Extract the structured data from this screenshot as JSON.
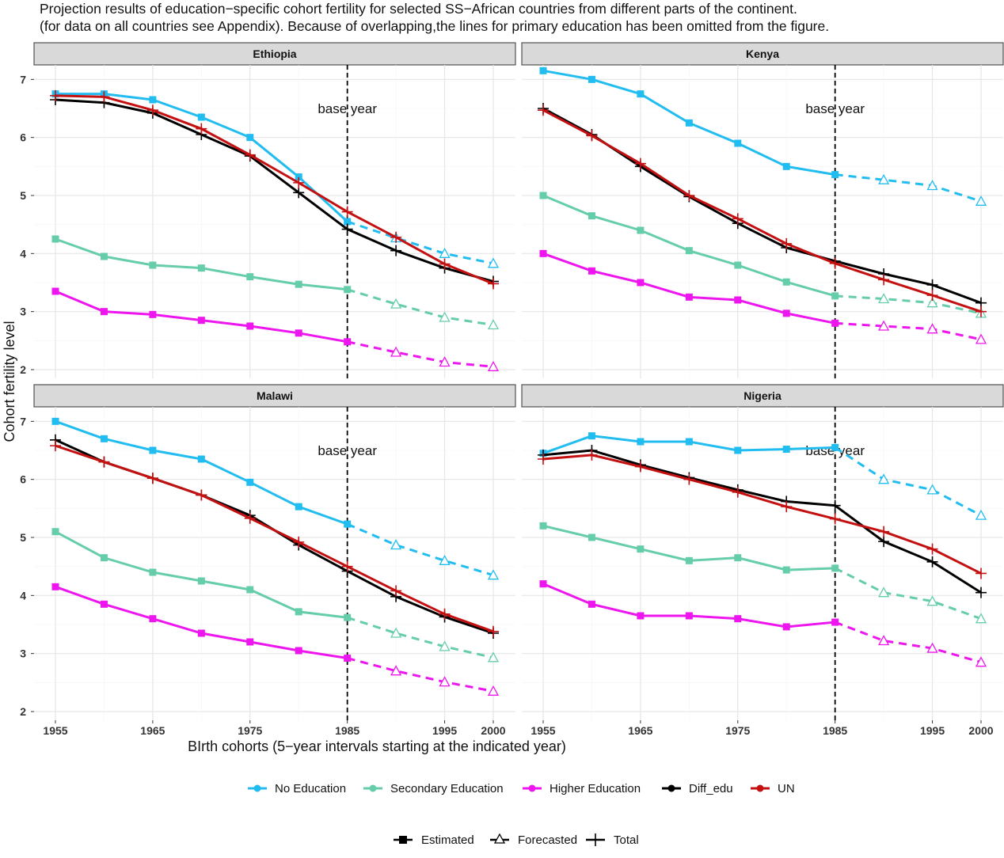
{
  "chart_data": {
    "type": "line",
    "title": "Projection results of education−specific cohort fertility for selected SS−African countries from different parts of the continent.",
    "subtitle": "(for data on all countries see Appendix). Because of overlapping,the lines for primary education has been omitted from the figure.",
    "xlabel": "BIrth cohorts (5−year intervals starting at the indicated year)",
    "ylabel": "Cohort fertility level",
    "x": [
      1955,
      1960,
      1965,
      1970,
      1975,
      1980,
      1985,
      1990,
      1995,
      2000
    ],
    "xticks": [
      "1955",
      "1965",
      "1975",
      "1985",
      "1995",
      "2000"
    ],
    "yticks": [
      "2",
      "3",
      "4",
      "5",
      "6",
      "7"
    ],
    "ylim": [
      1.85,
      7.25
    ],
    "xlim": [
      1953,
      2002
    ],
    "grid": true,
    "base_year": 1985,
    "base_year_label": "base year",
    "legend_placement": "bottom",
    "series_legend": [
      {
        "name": "No Education",
        "color": "#22bdf0"
      },
      {
        "name": "Secondary Education",
        "color": "#66cdaa"
      },
      {
        "name": "Higher Education",
        "color": "#ee16ee"
      },
      {
        "name": "Diff_edu",
        "color": "#000000"
      },
      {
        "name": "UN",
        "color": "#c41010"
      }
    ],
    "type_legend": [
      "Estimated",
      "Forecasted",
      "Total"
    ],
    "panels": [
      {
        "name": "Ethiopia",
        "series": {
          "No Education": [
            6.75,
            6.75,
            6.65,
            6.35,
            6.0,
            5.32,
            4.55,
            4.27,
            4.0,
            3.83
          ],
          "Secondary Education": [
            4.25,
            3.95,
            3.8,
            3.75,
            3.6,
            3.47,
            3.38,
            3.13,
            2.9,
            2.77
          ],
          "Higher Education": [
            3.35,
            3.0,
            2.95,
            2.85,
            2.75,
            2.63,
            2.48,
            2.3,
            2.13,
            2.05
          ],
          "Diff_edu": [
            6.65,
            6.6,
            6.42,
            6.05,
            5.68,
            5.05,
            4.42,
            4.05,
            3.75,
            3.52
          ],
          "UN": [
            6.72,
            6.7,
            6.47,
            6.15,
            5.7,
            5.22,
            4.72,
            4.28,
            3.82,
            3.48
          ]
        }
      },
      {
        "name": "Kenya",
        "series": {
          "No Education": [
            7.15,
            7.0,
            6.75,
            6.25,
            5.9,
            5.5,
            5.36,
            5.27,
            5.17,
            4.9
          ],
          "Secondary Education": [
            5.0,
            4.65,
            4.4,
            4.05,
            3.8,
            3.51,
            3.27,
            3.22,
            3.15,
            2.97
          ],
          "Higher Education": [
            4.0,
            3.7,
            3.5,
            3.25,
            3.2,
            2.97,
            2.8,
            2.75,
            2.7,
            2.52
          ],
          "Diff_edu": [
            6.5,
            6.05,
            5.5,
            4.98,
            4.52,
            4.1,
            3.87,
            3.65,
            3.46,
            3.15
          ],
          "UN": [
            6.47,
            6.03,
            5.55,
            5.0,
            4.6,
            4.17,
            3.83,
            3.55,
            3.28,
            3.0
          ]
        }
      },
      {
        "name": "Malawi",
        "series": {
          "No Education": [
            7.0,
            6.7,
            6.5,
            6.35,
            5.95,
            5.53,
            5.23,
            4.87,
            4.6,
            4.35
          ],
          "Secondary Education": [
            5.1,
            4.65,
            4.4,
            4.25,
            4.1,
            3.72,
            3.62,
            3.35,
            3.12,
            2.93
          ],
          "Higher Education": [
            4.15,
            3.85,
            3.6,
            3.35,
            3.2,
            3.05,
            2.92,
            2.7,
            2.51,
            2.35
          ],
          "Diff_edu": [
            6.68,
            6.3,
            6.02,
            5.73,
            5.38,
            4.87,
            4.42,
            3.98,
            3.63,
            3.35
          ],
          "UN": [
            6.58,
            6.3,
            6.02,
            5.73,
            5.33,
            4.92,
            4.5,
            4.08,
            3.68,
            3.38
          ]
        }
      },
      {
        "name": "Nigeria",
        "series": {
          "No Education": [
            6.45,
            6.75,
            6.65,
            6.65,
            6.5,
            6.52,
            6.55,
            6.0,
            5.82,
            5.38
          ],
          "Secondary Education": [
            5.2,
            5.0,
            4.8,
            4.6,
            4.65,
            4.44,
            4.47,
            4.05,
            3.9,
            3.6
          ],
          "Higher Education": [
            4.2,
            3.85,
            3.65,
            3.65,
            3.6,
            3.46,
            3.54,
            3.22,
            3.09,
            2.85
          ],
          "Diff_edu": [
            6.42,
            6.5,
            6.25,
            6.03,
            5.82,
            5.62,
            5.55,
            4.93,
            4.58,
            4.05
          ],
          "UN": [
            6.35,
            6.42,
            6.22,
            6.0,
            5.78,
            5.53,
            5.32,
            5.1,
            4.8,
            4.38
          ]
        }
      }
    ]
  }
}
